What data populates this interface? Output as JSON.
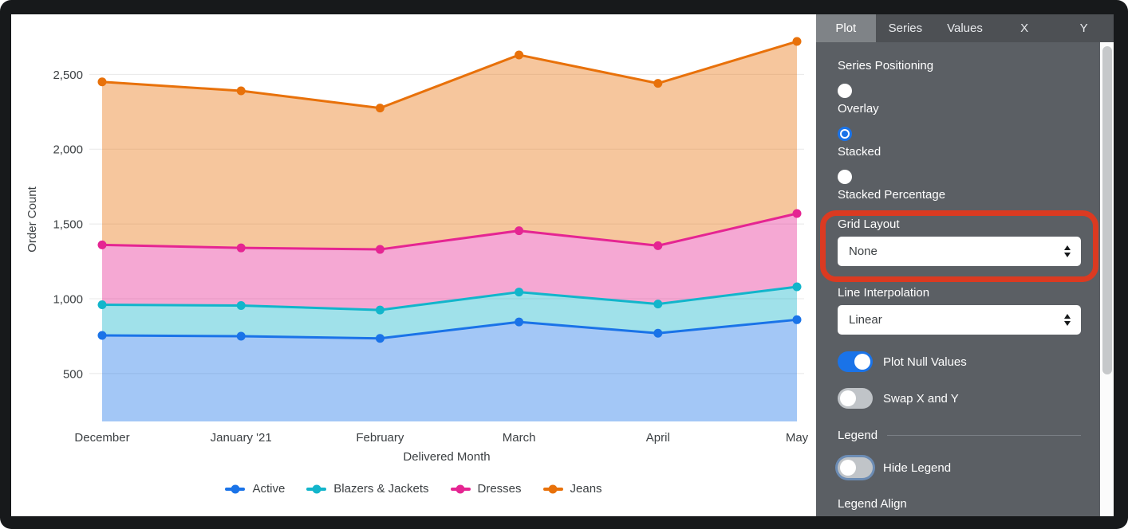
{
  "chart_data": {
    "type": "area",
    "stacking": "stacked",
    "title": "",
    "xlabel": "Delivered Month",
    "ylabel": "Order Count",
    "categories": [
      "December",
      "January '21",
      "February",
      "March",
      "April",
      "May"
    ],
    "series": [
      {
        "name": "Active",
        "color": "#1A73E8",
        "values": [
          755,
          750,
          735,
          845,
          770,
          860
        ]
      },
      {
        "name": "Blazers & Jackets",
        "color": "#12B5CB",
        "values": [
          205,
          205,
          190,
          200,
          195,
          220
        ]
      },
      {
        "name": "Dresses",
        "color": "#E52592",
        "values": [
          400,
          385,
          405,
          410,
          390,
          490
        ]
      },
      {
        "name": "Jeans",
        "color": "#E8710A",
        "values": [
          1090,
          1050,
          945,
          1175,
          1085,
          1150
        ]
      }
    ],
    "stacked_cumulative_totals": [
      [
        755,
        750,
        735,
        845,
        770,
        860
      ],
      [
        960,
        955,
        925,
        1045,
        965,
        1080
      ],
      [
        1360,
        1340,
        1330,
        1455,
        1355,
        1570
      ],
      [
        2450,
        2390,
        2275,
        2630,
        2440,
        2720
      ]
    ],
    "y_ticks": [
      500,
      1000,
      1500,
      2000,
      2500
    ],
    "ylim": [
      180,
      2880
    ],
    "grid": "horizontal",
    "legend_position": "bottom",
    "fill_opacity": 0.4
  },
  "panel": {
    "tabs": [
      {
        "label": "Plot",
        "active": true
      },
      {
        "label": "Series",
        "active": false
      },
      {
        "label": "Values",
        "active": false
      },
      {
        "label": "X",
        "active": false
      },
      {
        "label": "Y",
        "active": false
      }
    ],
    "series_positioning": {
      "label": "Series Positioning",
      "options": [
        {
          "label": "Overlay",
          "selected": false
        },
        {
          "label": "Stacked",
          "selected": true
        },
        {
          "label": "Stacked Percentage",
          "selected": false
        }
      ]
    },
    "grid_layout": {
      "label": "Grid Layout",
      "value": "None",
      "highlighted": true
    },
    "line_interpolation": {
      "label": "Line Interpolation",
      "value": "Linear"
    },
    "plot_null_values": {
      "label": "Plot Null Values",
      "on": true
    },
    "swap_x_y": {
      "label": "Swap X and Y",
      "on": false
    },
    "legend_section": {
      "header": "Legend",
      "hide_legend": {
        "label": "Hide Legend",
        "on": false,
        "focused": true
      },
      "legend_align": {
        "label": "Legend Align"
      }
    }
  },
  "colors": {
    "accent_blue": "#1A73E8",
    "highlight_red": "#DB3A21",
    "panel_bg": "#5B5F64"
  }
}
